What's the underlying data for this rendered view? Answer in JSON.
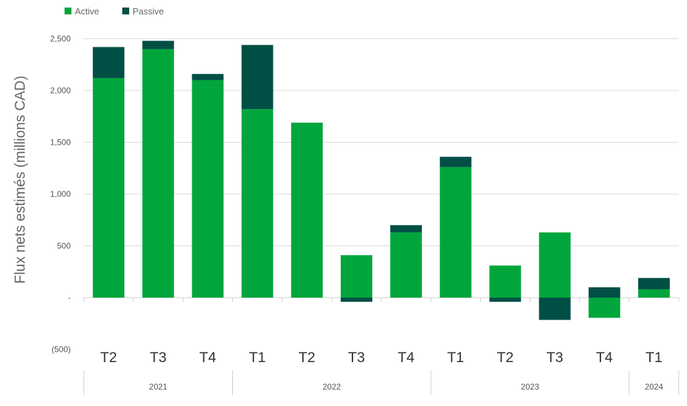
{
  "chart_data": {
    "type": "bar",
    "stacked": true,
    "ylabel": "Flux nets estimés (millions CAD)",
    "ylim": [
      -500,
      2500
    ],
    "yticks": [
      {
        "value": 2500,
        "label": "2,500"
      },
      {
        "value": 2000,
        "label": "2,000"
      },
      {
        "value": 1500,
        "label": "1,500"
      },
      {
        "value": 1000,
        "label": "1,000"
      },
      {
        "value": 500,
        "label": "500"
      },
      {
        "value": 0,
        "label": "-"
      },
      {
        "value": -500,
        "label": "(500)"
      }
    ],
    "grid": true,
    "legend_position": "top-left",
    "categories": [
      "T2",
      "T3",
      "T4",
      "T1",
      "T2",
      "T3",
      "T4",
      "T1",
      "T2",
      "T3",
      "T4",
      "T1"
    ],
    "groups": [
      {
        "label": "2021",
        "start": 0,
        "end": 2
      },
      {
        "label": "2022",
        "start": 3,
        "end": 6
      },
      {
        "label": "2023",
        "start": 7,
        "end": 10
      },
      {
        "label": "2024",
        "start": 11,
        "end": 11
      }
    ],
    "series": [
      {
        "name": "Active",
        "color": "#00a63c",
        "values": [
          2120,
          2400,
          2100,
          1820,
          1690,
          410,
          630,
          1260,
          310,
          630,
          -195,
          80
        ]
      },
      {
        "name": "Passive",
        "color": "#004f45",
        "values": [
          300,
          80,
          60,
          620,
          0,
          -40,
          70,
          100,
          -40,
          -215,
          100,
          110
        ]
      }
    ]
  }
}
